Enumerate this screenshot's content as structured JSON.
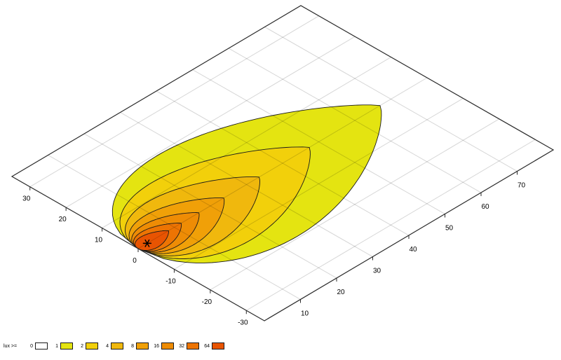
{
  "chart_data": {
    "type": "contour",
    "subtype": "isolux-beam-footprint",
    "title": "",
    "legend_title": "lux >=",
    "legend_position": "bottom-left",
    "grid": true,
    "x_axis": {
      "range": [
        0,
        80
      ],
      "ticks": [
        10,
        20,
        30,
        40,
        50,
        60,
        70
      ]
    },
    "y_axis": {
      "range": [
        -35,
        35
      ],
      "ticks": [
        30,
        20,
        10,
        0,
        -10,
        -20,
        -30
      ]
    },
    "levels": [
      {
        "lux": 0,
        "color": "#ffffff",
        "reach": null,
        "halfwidth": null
      },
      {
        "lux": 1,
        "color": "#e4e411",
        "reach": 67,
        "halfwidth": 19.5
      },
      {
        "lux": 2,
        "color": "#f2d00b",
        "reach": 47.4,
        "halfwidth": 13.8
      },
      {
        "lux": 4,
        "color": "#f0b80d",
        "reach": 33.5,
        "halfwidth": 9.8
      },
      {
        "lux": 8,
        "color": "#f0a008",
        "reach": 23.7,
        "halfwidth": 6.9
      },
      {
        "lux": 16,
        "color": "#ee8c05",
        "reach": 16.8,
        "halfwidth": 4.9
      },
      {
        "lux": 32,
        "color": "#ed7403",
        "reach": 11.9,
        "halfwidth": 3.5
      },
      {
        "lux": 64,
        "color": "#e85402",
        "reach": 8.4,
        "halfwidth": 2.4
      }
    ],
    "source_marker": {
      "x": 2.5,
      "y": 0,
      "symbol": "asterisk"
    },
    "colors": {
      "grid": "rgba(0,0,0,0.16)",
      "border": "#2b2b2b",
      "contour_line": "#1a1a1a",
      "marker": "#000000",
      "plane_fill": "#ffffff"
    }
  }
}
